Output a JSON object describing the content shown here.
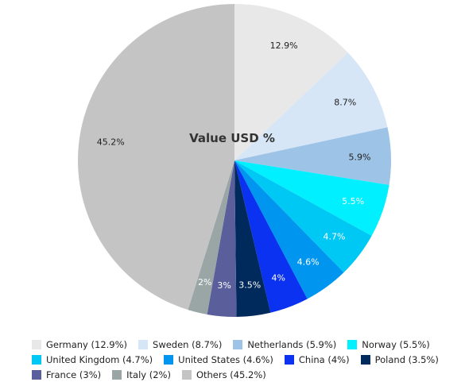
{
  "chart_data": {
    "type": "pie",
    "title": "Value USD %",
    "slices": [
      {
        "label": "Germany",
        "value": 12.9,
        "display": "12.9%",
        "legend": "Germany (12.9%)",
        "color": "#e8e8e8",
        "text_color": "#222222"
      },
      {
        "label": "Sweden",
        "value": 8.7,
        "display": "8.7%",
        "legend": "Sweden (8.7%)",
        "color": "#d6e6f7",
        "text_color": "#222222"
      },
      {
        "label": "Netherlands",
        "value": 5.9,
        "display": "5.9%",
        "legend": "Netherlands (5.9%)",
        "color": "#9dc3e6",
        "text_color": "#222222"
      },
      {
        "label": "Norway",
        "value": 5.5,
        "display": "5.5%",
        "legend": "Norway (5.5%)",
        "color": "#00f0ff",
        "text_color": "#ffffff"
      },
      {
        "label": "United Kingdom",
        "value": 4.7,
        "display": "4.7%",
        "legend": "United Kingdom (4.7%)",
        "color": "#00c8f5",
        "text_color": "#ffffff"
      },
      {
        "label": "United States",
        "value": 4.6,
        "display": "4.6%",
        "legend": "United States (4.6%)",
        "color": "#0096f0",
        "text_color": "#ffffff"
      },
      {
        "label": "China",
        "value": 4.0,
        "display": "4%",
        "legend": "China (4%)",
        "color": "#0a32f0",
        "text_color": "#ffffff"
      },
      {
        "label": "Poland",
        "value": 3.5,
        "display": "3.5%",
        "legend": "Poland (3.5%)",
        "color": "#002a5c",
        "text_color": "#ffffff"
      },
      {
        "label": "France",
        "value": 3.0,
        "display": "3%",
        "legend": "France (3%)",
        "color": "#5a5f9c",
        "text_color": "#ffffff"
      },
      {
        "label": "Italy",
        "value": 2.0,
        "display": "2%",
        "legend": "Italy (2%)",
        "color": "#9aa5a5",
        "text_color": "#ffffff"
      },
      {
        "label": "Others",
        "value": 45.2,
        "display": "45.2%",
        "legend": "Others (45.2%)",
        "color": "#c4c4c4",
        "text_color": "#222222"
      }
    ],
    "legend_placement": "bottom"
  }
}
